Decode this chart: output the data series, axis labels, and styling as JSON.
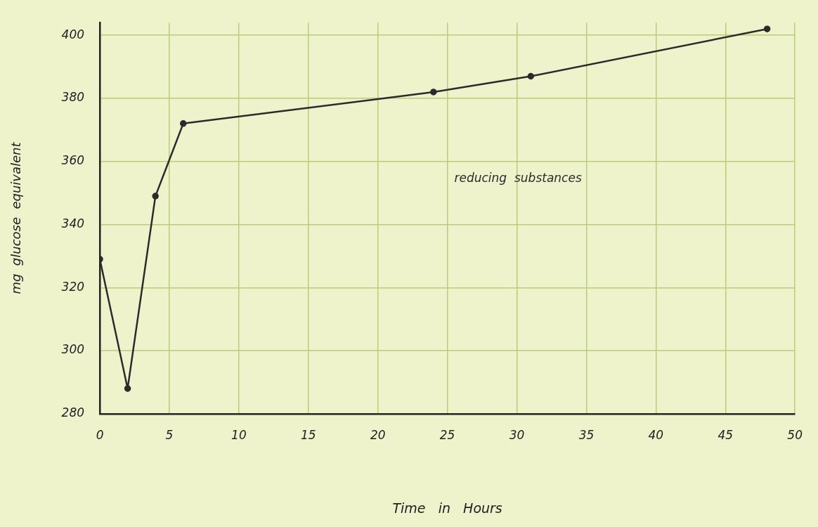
{
  "chart_data": {
    "type": "line",
    "xlabel": "Time   in   Hours",
    "ylabel": "mg  glucose  equivalent",
    "x": [
      0,
      2,
      4,
      6,
      24,
      31,
      48
    ],
    "series": [
      {
        "name": "reducing  substances",
        "color": "#2b2b2b",
        "values": [
          329,
          288,
          349,
          372,
          382,
          387,
          402
        ]
      }
    ],
    "xlim": [
      0,
      50
    ],
    "xticks": [
      0,
      5,
      10,
      15,
      20,
      25,
      30,
      35,
      40,
      45,
      50
    ],
    "ylim": [
      280,
      404
    ],
    "yticks": [
      280,
      300,
      320,
      340,
      360,
      380,
      400
    ],
    "grid": true,
    "legend": false,
    "marker": "circle",
    "line_style": "solid"
  }
}
